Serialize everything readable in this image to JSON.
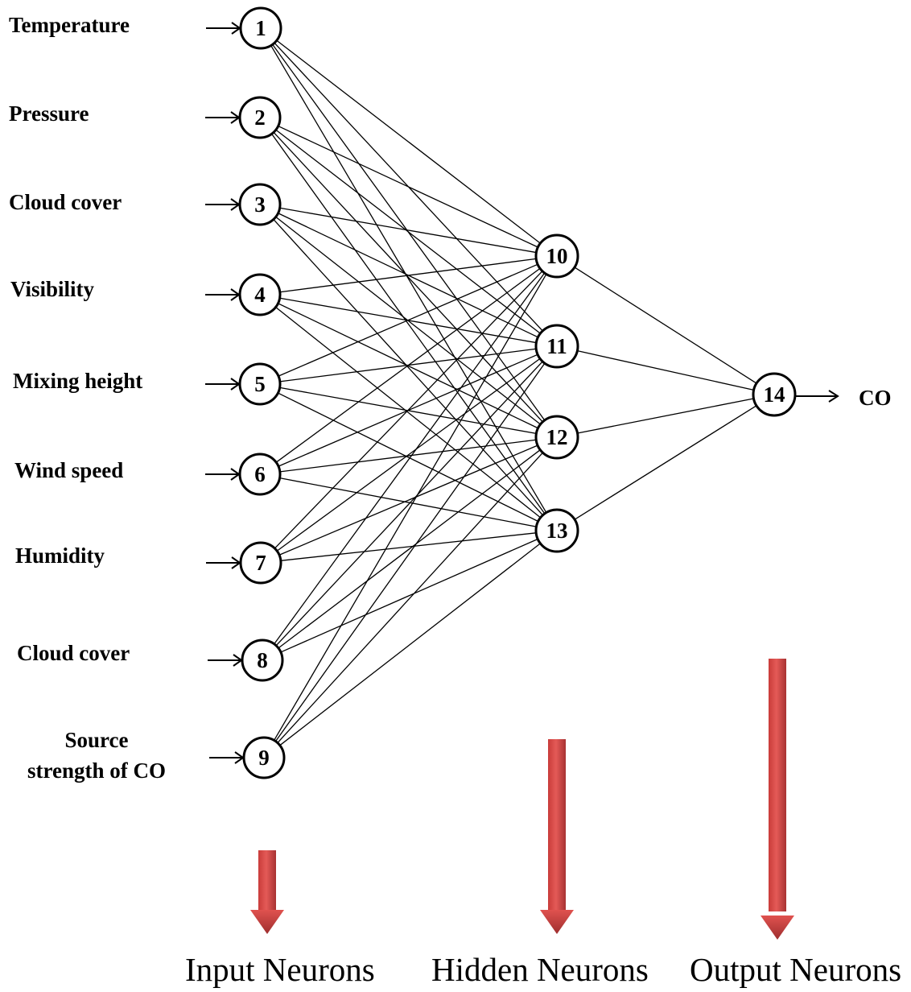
{
  "input_labels": [
    "Temperature",
    "Pressure",
    "Cloud cover",
    "Visibility",
    "Mixing height",
    "Wind speed",
    "Humidity",
    "Cloud cover",
    "Source\nstrength of CO"
  ],
  "input_nodes": [
    "1",
    "2",
    "3",
    "4",
    "5",
    "6",
    "7",
    "8",
    "9"
  ],
  "hidden_nodes": [
    "10",
    "11",
    "12",
    "13"
  ],
  "output_node": "14",
  "output_label": "CO",
  "captions": {
    "input": "Input Neurons",
    "hidden": "Hidden Neurons",
    "output": "Output Neurons"
  },
  "colors": {
    "line": "#000000",
    "node_fill": "#ffffff",
    "arrow_light": "#e0524f",
    "arrow_dark": "#9e2e2e"
  }
}
